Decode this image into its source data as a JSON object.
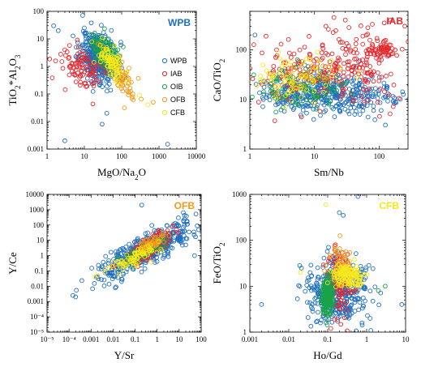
{
  "colors": {
    "WPB": "#1f6fc0",
    "IAB": "#e8262a",
    "OIB": "#1aa34a",
    "OFB": "#f29a1a",
    "CFB": "#f5e81c"
  },
  "chart_data": [
    {
      "type": "scatter",
      "tag": "WPB",
      "tag_color": "#1f6fc0",
      "log_x": true,
      "log_y": true,
      "xlim": [
        1,
        10000
      ],
      "ylim": [
        0.001,
        100
      ],
      "xlabel": "MgO/Na2O",
      "ylabel": "TiO2*Al2O3",
      "xticks": [
        {
          "v": 1,
          "label": "1"
        },
        {
          "v": 10,
          "label": "10"
        },
        {
          "v": 100,
          "label": "100"
        },
        {
          "v": 1000,
          "label": "1000"
        },
        {
          "v": 10000,
          "label": "10000"
        }
      ],
      "yticks": [
        {
          "v": 0.001,
          "label": "0.001"
        },
        {
          "v": 0.01,
          "label": "0.01"
        },
        {
          "v": 0.1,
          "label": "0.1"
        },
        {
          "v": 1,
          "label": "1"
        },
        {
          "v": 10,
          "label": "10"
        },
        {
          "v": 100,
          "label": "100"
        }
      ],
      "legend_position": "right",
      "legend": [
        "WPB",
        "IAB",
        "OIB",
        "OFB",
        "CFB"
      ],
      "clouds": [
        {
          "series": "WPB",
          "n": 420,
          "cx": [
            0.9,
            1.9
          ],
          "cy": [
            -0.6,
            1.25
          ],
          "corr": -0.3,
          "seed": 11
        },
        {
          "series": "IAB",
          "n": 90,
          "cx": [
            0.3,
            1.7
          ],
          "cy": [
            -0.9,
            0.7
          ],
          "corr": -0.2,
          "seed": 12
        },
        {
          "series": "OIB",
          "n": 160,
          "cx": [
            1.2,
            2.0
          ],
          "cy": [
            -0.2,
            1.1
          ],
          "corr": -0.6,
          "seed": 13
        },
        {
          "series": "OFB",
          "n": 60,
          "cx": [
            1.6,
            2.6
          ],
          "cy": [
            -1.4,
            0.4
          ],
          "corr": -0.7,
          "seed": 14
        },
        {
          "series": "CFB",
          "n": 90,
          "cx": [
            1.4,
            2.1
          ],
          "cy": [
            -0.5,
            0.8
          ],
          "corr": -0.6,
          "seed": 15
        }
      ],
      "points": [
        {
          "series": "WPB",
          "x": 1.5,
          "y": 30
        },
        {
          "series": "WPB",
          "x": 2,
          "y": 20
        },
        {
          "series": "WPB",
          "x": 3,
          "y": 0.002
        },
        {
          "series": "WPB",
          "x": 30,
          "y": 0.008
        },
        {
          "series": "WPB",
          "x": 40,
          "y": 0.02
        },
        {
          "series": "WPB",
          "x": 1700,
          "y": 0.0015
        },
        {
          "series": "WPB",
          "x": 10,
          "y": 25
        },
        {
          "series": "OFB",
          "x": 700,
          "y": 0.05
        },
        {
          "series": "CFB",
          "x": 500,
          "y": 0.04
        },
        {
          "series": "CFB",
          "x": 300,
          "y": 0.09
        },
        {
          "series": "OFB",
          "x": 200,
          "y": 0.1
        },
        {
          "series": "IAB",
          "x": 3,
          "y": 4
        },
        {
          "series": "IAB",
          "x": 2.5,
          "y": 1.5
        },
        {
          "series": "IAB",
          "x": 4,
          "y": 1
        }
      ]
    },
    {
      "type": "scatter",
      "tag": "IAB",
      "tag_color": "#e8262a",
      "log_x": true,
      "log_y": true,
      "xlim": [
        1,
        280
      ],
      "ylim": [
        1,
        600
      ],
      "xlabel": "Sm/Nb",
      "ylabel": "CaO/TiO2",
      "xticks": [
        {
          "v": 1,
          "label": "1"
        },
        {
          "v": 10,
          "label": "10"
        },
        {
          "v": 100,
          "label": "100"
        }
      ],
      "yticks": [
        {
          "v": 1,
          "label": "1"
        },
        {
          "v": 10,
          "label": "10"
        },
        {
          "v": 100,
          "label": "100"
        }
      ],
      "legend": [],
      "clouds": [
        {
          "series": "WPB",
          "n": 420,
          "cx": [
            0.0,
            2.45
          ],
          "cy": [
            0.7,
            1.5
          ],
          "corr": 0.0,
          "seed": 21
        },
        {
          "series": "IAB",
          "n": 260,
          "cx": [
            0.1,
            2.4
          ],
          "cy": [
            0.9,
            2.3
          ],
          "corr": 0.1,
          "seed": 22
        },
        {
          "series": "OIB",
          "n": 100,
          "cx": [
            0.1,
            1.4
          ],
          "cy": [
            0.85,
            1.6
          ],
          "corr": 0.0,
          "seed": 23
        },
        {
          "series": "OFB",
          "n": 40,
          "cx": [
            0.3,
            1.4
          ],
          "cy": [
            1.0,
            1.8
          ],
          "corr": 0.0,
          "seed": 24
        },
        {
          "series": "CFB",
          "n": 70,
          "cx": [
            0.1,
            1.3
          ],
          "cy": [
            1.0,
            1.8
          ],
          "corr": 0.0,
          "seed": 25
        },
        {
          "series": "IAB",
          "n": 60,
          "cx": [
            1.8,
            2.3
          ],
          "cy": [
            1.8,
            2.2
          ],
          "corr": 0.0,
          "seed": 26
        }
      ],
      "points": [
        {
          "series": "WPB",
          "x": 50,
          "y": 600
        },
        {
          "series": "IAB",
          "x": 30,
          "y": 400
        },
        {
          "series": "IAB",
          "x": 120,
          "y": 350
        },
        {
          "series": "IAB",
          "x": 250,
          "y": 300
        },
        {
          "series": "IAB",
          "x": 150,
          "y": 400
        },
        {
          "series": "IAB",
          "x": 20,
          "y": 450
        },
        {
          "series": "WPB",
          "x": 1.2,
          "y": 200
        },
        {
          "series": "IAB",
          "x": 15,
          "y": 300
        }
      ]
    },
    {
      "type": "scatter",
      "tag": "OFB",
      "tag_color": "#f29a1a",
      "log_x": true,
      "log_y": true,
      "xlim": [
        1e-05,
        100
      ],
      "ylim": [
        1e-05,
        10000
      ],
      "xlabel": "Y/Sr",
      "ylabel": "Y/Ce",
      "xticks": [
        {
          "v": 1e-05,
          "label": "10⁻⁵"
        },
        {
          "v": 0.0001,
          "label": "10⁻⁴"
        },
        {
          "v": 0.001,
          "label": "0.001"
        },
        {
          "v": 0.01,
          "label": "0.01"
        },
        {
          "v": 0.1,
          "label": "0.1"
        },
        {
          "v": 1,
          "label": "1"
        },
        {
          "v": 10,
          "label": "10"
        },
        {
          "v": 100,
          "label": "100"
        }
      ],
      "yticks": [
        {
          "v": 1e-05,
          "label": "10⁻⁵"
        },
        {
          "v": 0.0001,
          "label": "10⁻⁴"
        },
        {
          "v": 0.001,
          "label": "0.001"
        },
        {
          "v": 0.01,
          "label": "0.01"
        },
        {
          "v": 0.1,
          "label": "0.1"
        },
        {
          "v": 1,
          "label": "1"
        },
        {
          "v": 10,
          "label": "10"
        },
        {
          "v": 100,
          "label": "100"
        },
        {
          "v": 1000,
          "label": "1000"
        },
        {
          "v": 10000,
          "label": "10000"
        }
      ],
      "legend": [],
      "clouds": [
        {
          "series": "WPB",
          "n": 480,
          "cx": [
            -2.6,
            1.6
          ],
          "cy": [
            -1.5,
            2.2
          ],
          "corr": 0.85,
          "seed": 31
        },
        {
          "series": "IAB",
          "n": 180,
          "cx": [
            -1.6,
            0.6
          ],
          "cy": [
            -0.6,
            1.5
          ],
          "corr": 0.8,
          "seed": 32
        },
        {
          "series": "OIB",
          "n": 80,
          "cx": [
            -1.4,
            0.3
          ],
          "cy": [
            -0.4,
            1.0
          ],
          "corr": 0.8,
          "seed": 33
        },
        {
          "series": "OFB",
          "n": 70,
          "cx": [
            -1.0,
            0.4
          ],
          "cy": [
            0.1,
            1.4
          ],
          "corr": 0.7,
          "seed": 34
        },
        {
          "series": "CFB",
          "n": 80,
          "cx": [
            -2.3,
            0.2
          ],
          "cy": [
            -1.2,
            0.9
          ],
          "corr": 0.85,
          "seed": 35
        }
      ],
      "points": [
        {
          "series": "WPB",
          "x": 1e-05,
          "y": 1e-05
        },
        {
          "series": "WPB",
          "x": 0.0002,
          "y": 0.002
        },
        {
          "series": "WPB",
          "x": 0.00015,
          "y": 0.0025
        },
        {
          "series": "WPB",
          "x": 0.2,
          "y": 2000
        },
        {
          "series": "WPB",
          "x": 50,
          "y": 1
        },
        {
          "series": "WPB",
          "x": 20,
          "y": 5
        },
        {
          "series": "WPB",
          "x": 5,
          "y": 30
        },
        {
          "series": "CFB",
          "x": 0.002,
          "y": 0.05
        },
        {
          "series": "CFB",
          "x": 0.0015,
          "y": 0.04
        }
      ]
    },
    {
      "type": "scatter",
      "tag": "CFB",
      "tag_color": "#f5e81c",
      "log_x": true,
      "log_y": true,
      "xlim": [
        0.001,
        10
      ],
      "ylim": [
        1,
        1000
      ],
      "xlabel": "Ho/Gd",
      "ylabel": "FeO/TiO2",
      "xticks": [
        {
          "v": 0.001,
          "label": "0.001"
        },
        {
          "v": 0.01,
          "label": "0.01"
        },
        {
          "v": 0.1,
          "label": "0.1"
        },
        {
          "v": 1,
          "label": "1"
        },
        {
          "v": 10,
          "label": "10"
        }
      ],
      "yticks": [
        {
          "v": 1,
          "label": "1"
        },
        {
          "v": 10,
          "label": "10"
        },
        {
          "v": 100,
          "label": "100"
        },
        {
          "v": 1000,
          "label": "1000"
        }
      ],
      "legend": [],
      "clouds": [
        {
          "series": "WPB",
          "n": 380,
          "cx": [
            -1.6,
            0.1
          ],
          "cy": [
            0.15,
            1.6
          ],
          "corr": 0.0,
          "seed": 41
        },
        {
          "series": "IAB",
          "n": 120,
          "cx": [
            -1.05,
            -0.35
          ],
          "cy": [
            0.3,
            1.9
          ],
          "corr": 0.0,
          "seed": 42
        },
        {
          "series": "OIB",
          "n": 220,
          "cx": [
            -1.15,
            -0.85
          ],
          "cy": [
            0.4,
            1.2
          ],
          "corr": 0.0,
          "seed": 43
        },
        {
          "series": "OFB",
          "n": 40,
          "cx": [
            -1.0,
            -0.4
          ],
          "cy": [
            1.0,
            2.0
          ],
          "corr": 0.0,
          "seed": 44
        },
        {
          "series": "CFB",
          "n": 150,
          "cx": [
            -0.9,
            -0.1
          ],
          "cy": [
            1.0,
            1.5
          ],
          "corr": 0.0,
          "seed": 45
        }
      ],
      "points": [
        {
          "series": "WPB",
          "x": 0.6,
          "y": 900
        },
        {
          "series": "CFB",
          "x": 0.09,
          "y": 600
        },
        {
          "series": "WPB",
          "x": 0.2,
          "y": 400
        },
        {
          "series": "WPB",
          "x": 0.25,
          "y": 350
        },
        {
          "series": "WPB",
          "x": 0.002,
          "y": 4
        },
        {
          "series": "OIB",
          "x": 3,
          "y": 10
        },
        {
          "series": "OIB",
          "x": 2,
          "y": 8
        },
        {
          "series": "WPB",
          "x": 8,
          "y": 4
        },
        {
          "series": "IAB",
          "x": 0.12,
          "y": 1.2
        },
        {
          "series": "CFB",
          "x": 0.02,
          "y": 20
        }
      ]
    }
  ]
}
